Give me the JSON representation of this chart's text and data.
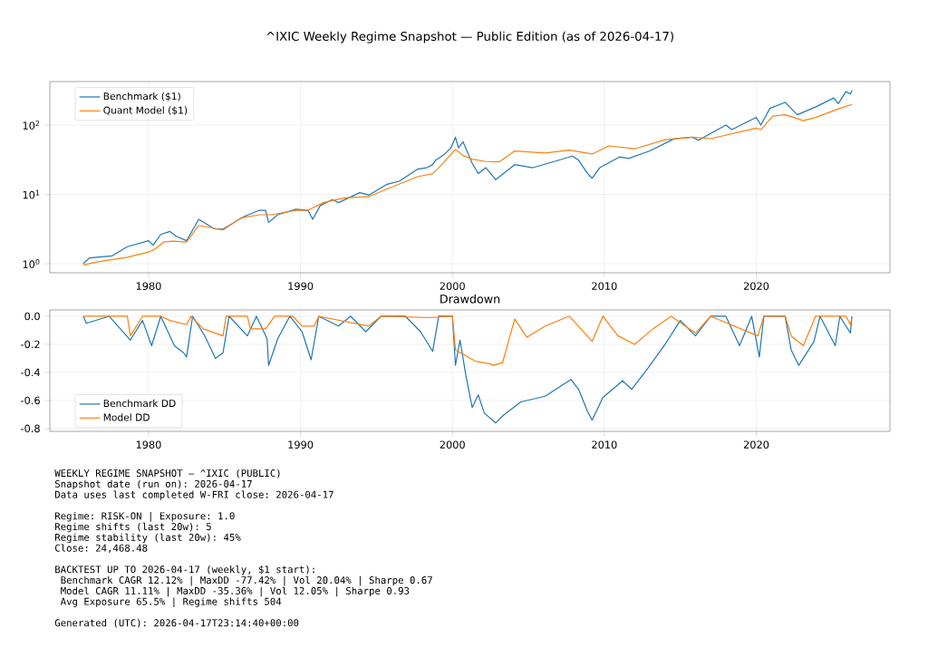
{
  "chart_data": [
    {
      "type": "line",
      "title": "^IXIC Weekly Regime Snapshot — Public Edition (as of 2026-04-17)",
      "xlim": [
        1973.5,
        2028.8
      ],
      "xticks": [
        1980,
        1990,
        2000,
        2010,
        2020
      ],
      "ylim": [
        0.74,
        425
      ],
      "yticks": [
        {
          "value": 1,
          "label": "10$^{0}$"
        },
        {
          "value": 10,
          "label": "10$^{1}$"
        },
        {
          "value": 100,
          "label": "10$^{2}$"
        }
      ],
      "log": true,
      "grid": true,
      "legend": "top left",
      "series": [
        {
          "name": "Benchmark ($1)",
          "color": "#1f77b4",
          "x": [
            1975.7,
            1976.1,
            1977.6,
            1978.6,
            1980.0,
            1980.3,
            1980.8,
            1981.4,
            1981.8,
            1982.5,
            1983.3,
            1984.3,
            1984.9,
            1986.3,
            1987.3,
            1987.7,
            1987.9,
            1988.5,
            1989.7,
            1990.5,
            1990.8,
            1991.3,
            1992.1,
            1992.5,
            1993.9,
            1994.5,
            1995.7,
            1996.5,
            1997.7,
            1998.3,
            1998.7,
            1998.9,
            1999.5,
            1999.9,
            2000.2,
            2000.4,
            2000.7,
            2001.3,
            2001.7,
            2002.2,
            2002.85,
            2004.1,
            2005.3,
            2006.7,
            2007.9,
            2008.3,
            2008.9,
            2009.2,
            2009.7,
            2011.0,
            2011.6,
            2013.0,
            2014.6,
            2015.8,
            2016.2,
            2018.0,
            2018.4,
            2020.0,
            2020.3,
            2020.9,
            2021.9,
            2022.7,
            2023.9,
            2025.1,
            2025.4,
            2025.9,
            2026.2,
            2026.3
          ],
          "values": [
            1.0,
            1.21,
            1.3,
            1.76,
            2.15,
            1.85,
            2.64,
            2.92,
            2.5,
            2.15,
            4.37,
            3.2,
            3.15,
            4.83,
            5.9,
            5.9,
            3.95,
            5.08,
            6.1,
            5.9,
            4.37,
            6.9,
            8.4,
            7.6,
            10.6,
            9.8,
            14.0,
            15.5,
            23.1,
            24.3,
            26.9,
            31.3,
            38.3,
            46.9,
            66.8,
            46.9,
            57.4,
            28.3,
            20,
            24.3,
            16.3,
            26.9,
            24.3,
            29.8,
            35.7,
            31.3,
            19.9,
            17.1,
            24.3,
            34.7,
            33,
            42.4,
            63.5,
            66.8,
            60.3,
            100,
            86,
            129,
            100,
            174,
            213,
            141,
            182,
            246,
            204,
            304,
            281,
            318
          ]
        },
        {
          "name": "Quant Model ($1)",
          "color": "#ff7f0e",
          "x": [
            1975.7,
            1976.6,
            1978.6,
            1980.0,
            1980.4,
            1981.0,
            1981.6,
            1982.5,
            1983.3,
            1984.9,
            1986.1,
            1987.3,
            1988.1,
            1989.7,
            1990.5,
            1991.5,
            1992.9,
            1994.5,
            1995.7,
            1997.7,
            1998.7,
            1999.3,
            2000.2,
            2000.7,
            2001.3,
            2002.2,
            2003.1,
            2004.1,
            2006.1,
            2007.7,
            2009.2,
            2010.3,
            2012.0,
            2014.0,
            2015.8,
            2017.0,
            2020.0,
            2020.3,
            2021.1,
            2021.9,
            2023.1,
            2023.9,
            2025.5,
            2026.3
          ],
          "values": [
            0.96,
            1.06,
            1.24,
            1.47,
            1.62,
            2.05,
            2.11,
            2.05,
            3.57,
            3.07,
            4.6,
            5.08,
            5.08,
            5.9,
            5.9,
            7.6,
            8.9,
            9.3,
            12.0,
            18.0,
            19.9,
            26.9,
            44.6,
            36.4,
            32.3,
            29.8,
            29.5,
            42.4,
            39.5,
            43.7,
            38.3,
            50.1,
            45.5,
            61.6,
            66.8,
            63.7,
            90.4,
            86,
            135,
            141,
            116,
            129,
            174,
            199
          ]
        }
      ]
    },
    {
      "type": "line",
      "title": "Drawdown",
      "xlim": [
        1973.5,
        2028.8
      ],
      "xticks": [
        1980,
        1990,
        2000,
        2010,
        2020
      ],
      "ylim": [
        -0.82,
        0.045
      ],
      "yticks": [
        -0.8,
        -0.6,
        -0.4,
        -0.2,
        {
          "value": 0,
          "label": "0.0"
        }
      ],
      "grid": true,
      "legend": "bottom left",
      "series": [
        {
          "name": "Benchmark DD",
          "color": "#1f77b4",
          "x": [
            1975.7,
            1975.9,
            1977.4,
            1978.8,
            1979.6,
            1980.2,
            1980.8,
            1981.7,
            1982.3,
            1982.5,
            1982.9,
            1983.7,
            1984.4,
            1984.9,
            1985.3,
            1986.5,
            1987.1,
            1987.8,
            1987.9,
            1988.5,
            1989.3,
            1990.1,
            1990.7,
            1991.2,
            1992.5,
            1993.3,
            1994.3,
            1995.3,
            1996.9,
            1997.9,
            1998.7,
            1999.1,
            2000.0,
            2000.2,
            2000.5,
            2000.9,
            2001.3,
            2001.7,
            2002.1,
            2002.85,
            2003.3,
            2004.5,
            2006.1,
            2007.8,
            2008.3,
            2008.9,
            2009.2,
            2009.9,
            2011.2,
            2011.8,
            2012.8,
            2014.0,
            2015.0,
            2016.0,
            2017.0,
            2018.0,
            2018.9,
            2019.7,
            2020.2,
            2020.5,
            2021.9,
            2022.3,
            2022.8,
            2023.8,
            2024.2,
            2025.2,
            2025.5,
            2026.2,
            2026.3
          ],
          "values": [
            0,
            -0.05,
            0,
            -0.17,
            -0.03,
            -0.21,
            0,
            -0.21,
            -0.26,
            -0.29,
            0,
            -0.14,
            -0.3,
            -0.26,
            0,
            -0.14,
            0,
            -0.16,
            -0.35,
            -0.16,
            0,
            -0.11,
            -0.31,
            0,
            -0.07,
            0,
            -0.11,
            0,
            0,
            -0.11,
            -0.25,
            0,
            0,
            -0.35,
            -0.17,
            -0.43,
            -0.65,
            -0.56,
            -0.69,
            -0.76,
            -0.71,
            -0.61,
            -0.57,
            -0.45,
            -0.52,
            -0.68,
            -0.74,
            -0.58,
            -0.46,
            -0.52,
            -0.38,
            -0.2,
            -0.03,
            -0.14,
            0,
            0,
            -0.21,
            0,
            -0.29,
            0,
            0,
            -0.24,
            -0.35,
            -0.18,
            0,
            -0.21,
            0,
            -0.12,
            0
          ]
        },
        {
          "name": "Model DD",
          "color": "#ff7f0e",
          "x": [
            1975.7,
            1978.6,
            1978.8,
            1979.6,
            1980.8,
            1981.4,
            1982.5,
            1982.8,
            1983.6,
            1984.9,
            1985.1,
            1986.5,
            1986.7,
            1987.7,
            1988.3,
            1989.5,
            1990.1,
            1990.9,
            1991.2,
            1994.5,
            1995.3,
            1998.5,
            2000.0,
            2000.2,
            2000.7,
            2001.5,
            2002.5,
            2002.7,
            2003.3,
            2004.1,
            2004.9,
            2006.1,
            2007.7,
            2009.2,
            2009.9,
            2010.9,
            2012.0,
            2013.2,
            2014.4,
            2016.0,
            2017.0,
            2020.1,
            2020.5,
            2021.9,
            2022.3,
            2023.1,
            2023.9,
            2025.9,
            2026.2,
            2026.3
          ],
          "values": [
            0,
            0,
            -0.14,
            0,
            0,
            -0.03,
            -0.06,
            0,
            -0.09,
            -0.14,
            0,
            0,
            -0.09,
            -0.09,
            0,
            0,
            -0.07,
            -0.07,
            0,
            -0.07,
            0,
            -0.01,
            0,
            -0.24,
            -0.27,
            -0.32,
            -0.34,
            -0.35,
            -0.33,
            -0.02,
            -0.15,
            -0.07,
            0,
            -0.18,
            0,
            -0.14,
            -0.2,
            -0.09,
            0,
            -0.12,
            0,
            -0.14,
            0,
            0,
            -0.14,
            -0.21,
            0,
            0,
            -0.06,
            0
          ]
        }
      ]
    },
    {
      "type": "other",
      "annotations": [
        "WEEKLY REGIME SNAPSHOT — ^IXIC (PUBLIC)",
        "Snapshot date (run on): 2026-04-17",
        "Data uses last completed W-FRI close: 2026-04-17",
        "Regime: RISK-ON | Exposure: 1.0",
        "Regime shifts (last 20w): 5",
        "Regime stability (last 20w): 45%",
        "Close: 24,468.48",
        "BACKTEST UP TO 2026-04-17 (weekly, $1 start):",
        "  Benchmark  CAGR 12.12% | MaxDD -77.42% | Vol 20.04% | Sharpe 0.67",
        "  Model      CAGR 11.11% | MaxDD -35.36% | Vol 12.05% | Sharpe 0.93",
        "  Avg Exposure 65.5% | Regime shifts 504",
        "Generated (UTC): 2026-04-17T23:14:40+00:00"
      ]
    }
  ]
}
